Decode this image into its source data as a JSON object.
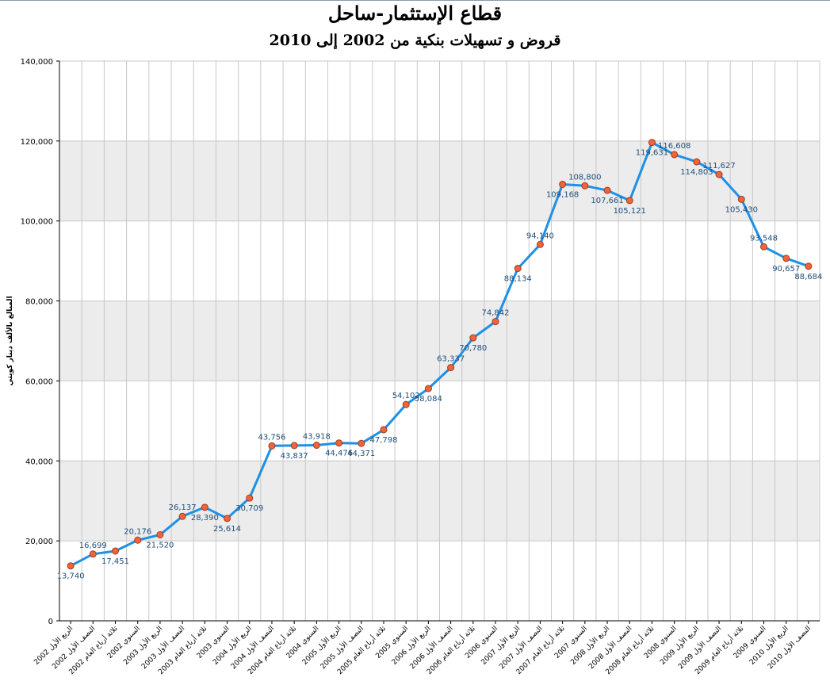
{
  "title": "قطاع الإستثمار-ساحل",
  "subtitle": "قروض و تسهيلات بنكية من 2002 إلى 2010",
  "colors": {
    "line": "#1e90e6",
    "marker_fill": "#f0643c",
    "marker_stroke": "#a03c1e",
    "band": "#ececec",
    "grid": "#c8c8c8",
    "label": "#1f4e79"
  },
  "chart_data": {
    "type": "line",
    "title": "قطاع الإستثمار-ساحل",
    "subtitle": "قروض و تسهيلات بنكية من 2002 إلى 2010",
    "ylabel": "المبالغ بالألف دينار كويتي",
    "xlabel": "",
    "ylim": [
      0,
      140000
    ],
    "yticks": [
      "0",
      "20,000",
      "40,000",
      "60,000",
      "80,000",
      "100,000",
      "120,000",
      "140,000"
    ],
    "grid": true,
    "alternating_bands": true,
    "categories": [
      "الربع الأول 2002",
      "النصف الأول 2002",
      "ثلاثة أرباع العام 2002",
      "السنوي 2002",
      "الربع الأول 2003",
      "النصف الأول 2003",
      "ثلاثة أرباع العام 2003",
      "السنوي 2003",
      "الربع الأول 2004",
      "النصف الأول 2004",
      "ثلاثة أرباع العام 2004",
      "السنوي 2004",
      "الربع الأول 2005",
      "النصف الأول 2005",
      "ثلاثة أرباع العام 2005",
      "السنوي 2005",
      "الربع الأول 2006",
      "النصف الأول 2006",
      "ثلاثة أرباع العام 2006",
      "السنوي 2006",
      "الربع الأول 2007",
      "النصف الأول 2007",
      "ثلاثة أرباع العام 2007",
      "السنوي 2007",
      "الربع الأول 2008",
      "النصف الأول 2008",
      "ثلاثة أرباع العام 2008",
      "السنوي 2008",
      "الربع الأول 2009",
      "النصف الأول 2009",
      "ثلاثة أرباع العام 2009",
      "السنوي 2009",
      "الربع الأول 2010",
      "النصف الأول 2010"
    ],
    "values": [
      13740,
      16699,
      17451,
      20176,
      21520,
      26137,
      28390,
      25614,
      30709,
      43756,
      43837,
      43918,
      44476,
      44371,
      47798,
      54102,
      58084,
      63337,
      70780,
      74842,
      88134,
      94140,
      109168,
      108800,
      107661,
      105121,
      119631,
      116608,
      114803,
      111627,
      105430,
      93548,
      90657,
      88684
    ],
    "data_labels": [
      "13,740",
      "16,699",
      "17,451",
      "20,176",
      "21,520",
      "26,137",
      "28,390",
      "25,614",
      "30,709",
      "43,756",
      "43,837",
      "43,918",
      "44,476",
      "44,371",
      "47,798",
      "54,102",
      "58,084",
      "63,337",
      "70,780",
      "74,842",
      "88,134",
      "94,140",
      "109,168",
      "108,800",
      "107,661",
      "105,121",
      "119,631",
      "116,608",
      "114,803",
      "111,627",
      "105,430",
      "93,548",
      "90,657",
      "88,684"
    ]
  }
}
